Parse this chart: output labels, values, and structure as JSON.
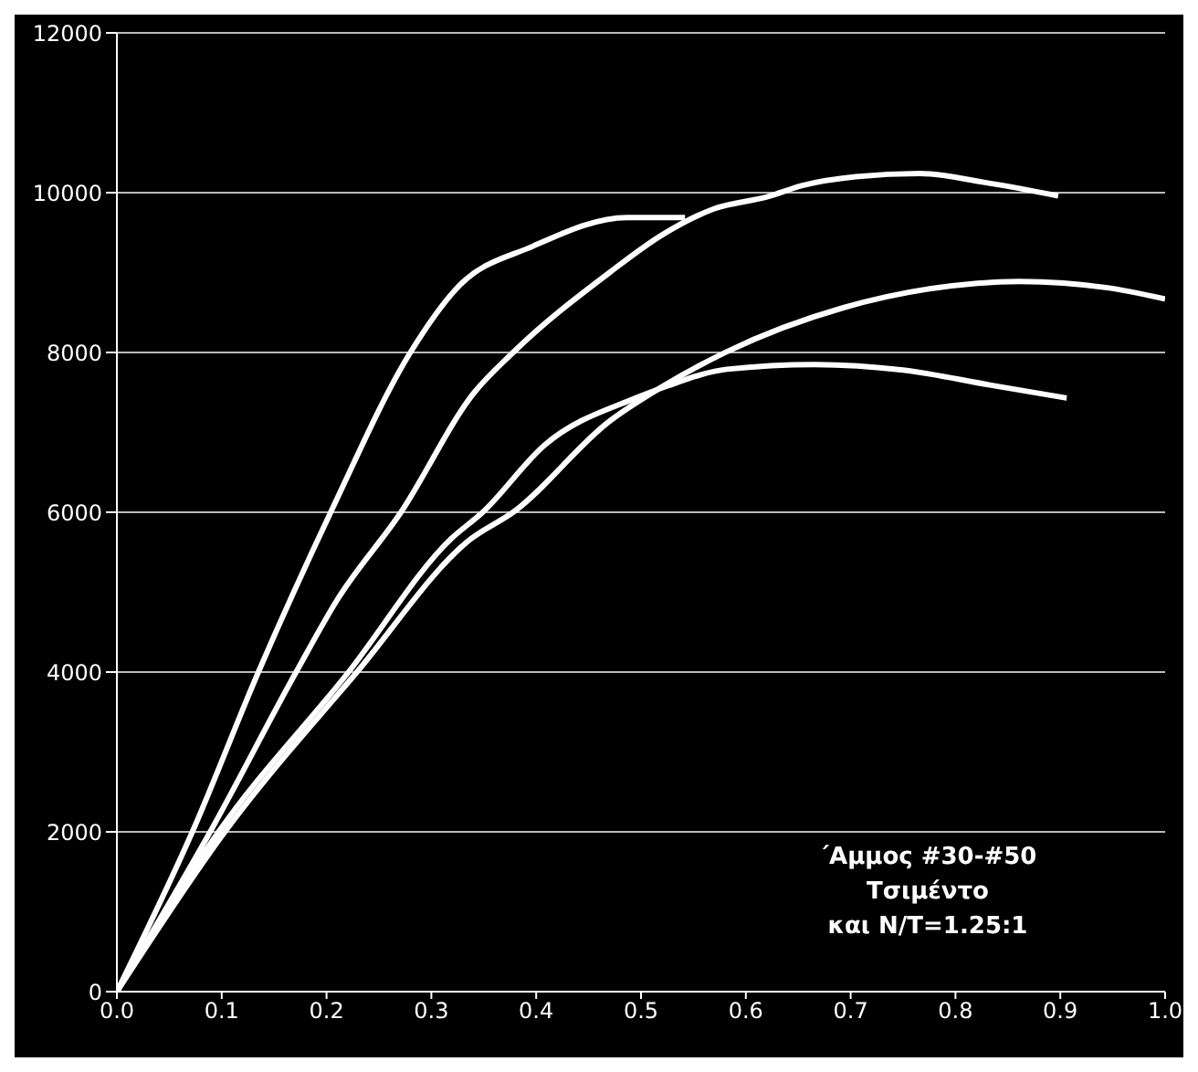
{
  "chart_data": {
    "type": "line",
    "marker": "none",
    "line_style": "solid",
    "grid": "y",
    "xlim": [
      0,
      1
    ],
    "ylim": [
      0,
      12000
    ],
    "xticks": [
      {
        "value": 0,
        "label": "0.0"
      },
      {
        "value": 0.1,
        "label": "0.1"
      },
      {
        "value": 0.2,
        "label": "0.2"
      },
      {
        "value": 0.3,
        "label": "0.3"
      },
      {
        "value": 0.4,
        "label": "0.4"
      },
      {
        "value": 0.5,
        "label": "0.5"
      },
      {
        "value": 0.6,
        "label": "0.6"
      },
      {
        "value": 0.7,
        "label": "0.7"
      },
      {
        "value": 0.8,
        "label": "0.8"
      },
      {
        "value": 0.9,
        "label": "0.9"
      },
      {
        "value": 1,
        "label": "1.0"
      }
    ],
    "yticks": [
      0,
      2000,
      4000,
      6000,
      8000,
      10000,
      12000
    ],
    "series": [
      {
        "color": "#ffffff",
        "x": [
          0,
          0.072,
          0.135,
          0.204,
          0.28,
          0.324,
          0.397,
          0.487,
          0.542
        ],
        "values": [
          0,
          2000,
          4000,
          6000,
          8000,
          8800,
          9330,
          9690,
          9690
        ]
      },
      {
        "color": "#ffffff",
        "x": [
          0,
          0.089,
          0.171,
          0.21,
          0.271,
          0.341,
          0.378,
          0.47,
          0.52,
          0.57,
          0.621,
          0.654,
          0.705,
          0.766,
          0.827,
          0.898
        ],
        "values": [
          0,
          2000,
          4000,
          4900,
          6000,
          7500,
          8000,
          9000,
          9470,
          9800,
          9950,
          10090,
          10200,
          10240,
          10130,
          9960
        ]
      },
      {
        "color": "#ffffff",
        "x": [
          0,
          0.103,
          0.229,
          0.338,
          0.378,
          0.47,
          0.52,
          0.582,
          0.693,
          0.777,
          0.861,
          0.945,
          1.0
        ],
        "values": [
          0,
          2000,
          4000,
          5670,
          6000,
          7140,
          7570,
          8010,
          8560,
          8800,
          8890,
          8810,
          8670
        ]
      },
      {
        "color": "#ffffff",
        "x": [
          0,
          0.097,
          0.221,
          0.319,
          0.349,
          0.408,
          0.495,
          0.525,
          0.582,
          0.666,
          0.75,
          0.834,
          0.906
        ],
        "values": [
          0,
          2000,
          4000,
          5670,
          6000,
          6840,
          7430,
          7580,
          7790,
          7850,
          7780,
          7590,
          7430
        ]
      }
    ],
    "annotations": [
      "΄Αμμος #30-#50",
      "Τσιμέντο",
      "και N/T=1.25:1"
    ]
  }
}
